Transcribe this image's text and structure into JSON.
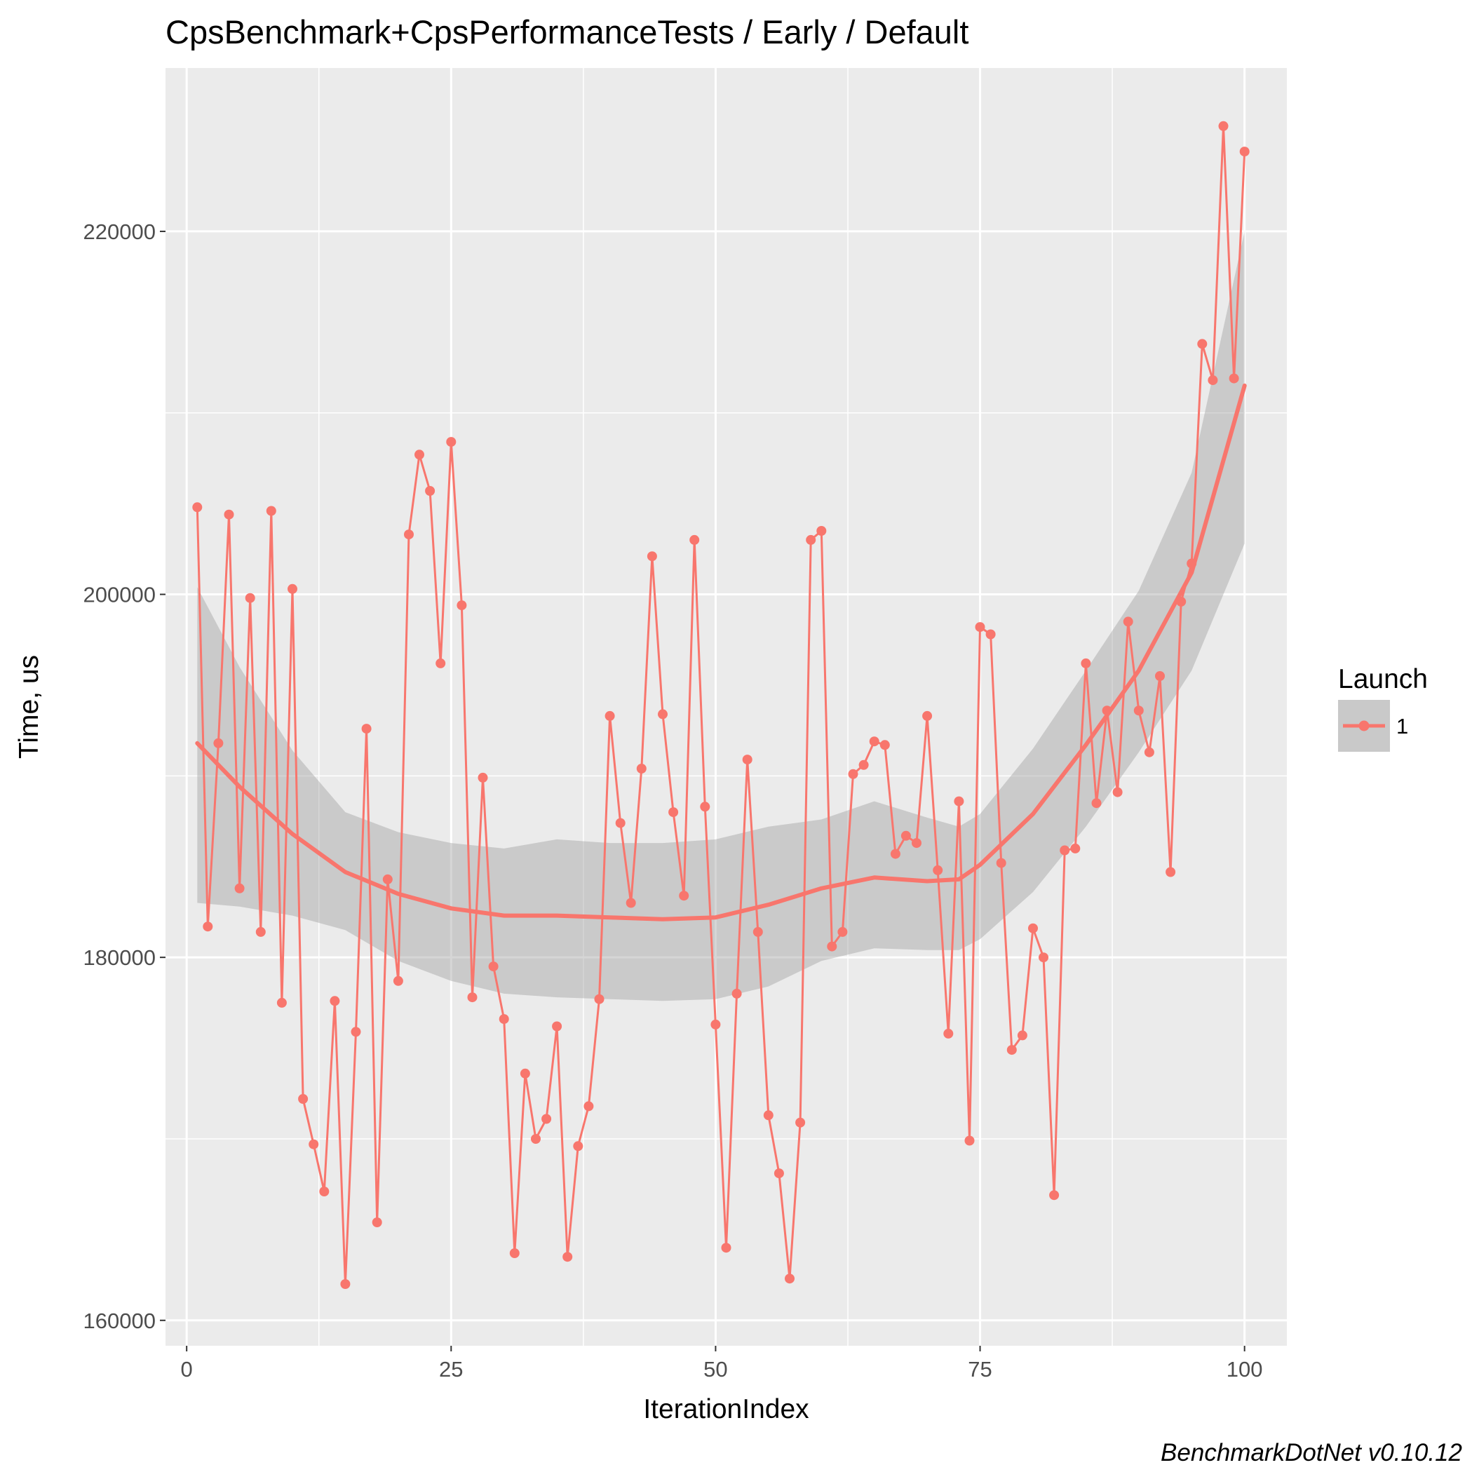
{
  "chart_data": {
    "type": "line",
    "title": "CpsBenchmark+CpsPerformanceTests / Early / Default",
    "xlabel": "IterationIndex",
    "ylabel": "Time, us",
    "caption": "BenchmarkDotNet v0.10.12",
    "xlim": [
      -2,
      104
    ],
    "ylim": [
      158600,
      229000
    ],
    "x_ticks": [
      0,
      25,
      50,
      75,
      100
    ],
    "x_tick_labels": [
      "0",
      "25",
      "50",
      "75",
      "100"
    ],
    "y_ticks": [
      160000,
      180000,
      200000,
      220000
    ],
    "y_tick_labels": [
      "160000",
      "180000",
      "200000",
      "220000"
    ],
    "grid": true,
    "legend": {
      "title": "Launch",
      "position": "right",
      "entries": [
        "1"
      ]
    },
    "colors": {
      "series": "#F8766D",
      "ribbon": "#C9C9C9",
      "panel": "#EBEBEB",
      "grid": "#FFFFFF"
    },
    "series": [
      {
        "name": "1",
        "x": [
          1,
          2,
          3,
          4,
          5,
          6,
          7,
          8,
          9,
          10,
          11,
          12,
          13,
          14,
          15,
          16,
          17,
          18,
          19,
          20,
          21,
          22,
          23,
          24,
          25,
          26,
          27,
          28,
          29,
          30,
          31,
          32,
          33,
          34,
          35,
          36,
          37,
          38,
          39,
          40,
          41,
          42,
          43,
          44,
          45,
          46,
          47,
          48,
          49,
          50,
          51,
          52,
          53,
          54,
          55,
          56,
          57,
          58,
          59,
          60,
          61,
          62,
          63,
          64,
          65,
          66,
          67,
          68,
          69,
          70,
          71,
          72,
          73,
          74,
          75,
          76,
          77,
          78,
          79,
          80,
          81,
          82,
          83,
          84,
          85,
          86,
          87,
          88,
          89,
          90,
          91,
          92,
          93,
          94,
          95,
          96,
          97,
          98,
          99,
          100
        ],
        "values": [
          204800,
          181700,
          191800,
          204400,
          183800,
          199800,
          181400,
          204600,
          177500,
          200300,
          172200,
          169700,
          167100,
          177600,
          162000,
          175900,
          192600,
          165400,
          184300,
          178700,
          203300,
          207700,
          205700,
          196200,
          208400,
          199400,
          177800,
          189900,
          179500,
          176600,
          163700,
          173600,
          170000,
          171100,
          176200,
          163500,
          169600,
          171800,
          177700,
          193300,
          187400,
          183000,
          190400,
          202100,
          193400,
          188000,
          183400,
          203000,
          188300,
          176300,
          164000,
          178000,
          190900,
          181400,
          171300,
          168100,
          162300,
          170900,
          203000,
          203500,
          180600,
          181400,
          190100,
          190600,
          191900,
          191700,
          185700,
          186700,
          186300,
          193300,
          184800,
          175800,
          188600,
          169900,
          198200,
          197800,
          185200,
          174900,
          175700,
          181600,
          180000,
          166900,
          185900,
          186000,
          196200,
          188500,
          193600,
          189100,
          198500,
          193600,
          191300,
          195500,
          184700,
          199600,
          201700,
          213800,
          211800,
          225800,
          211900,
          224400
        ]
      }
    ],
    "smooth": {
      "x": [
        1,
        5,
        10,
        15,
        20,
        25,
        30,
        35,
        40,
        45,
        50,
        55,
        60,
        65,
        70,
        73,
        75,
        80,
        85,
        90,
        95,
        100
      ],
      "fit": [
        191800,
        189400,
        186800,
        184700,
        183500,
        182700,
        182300,
        182300,
        182200,
        182100,
        182200,
        182900,
        183800,
        184400,
        184200,
        184300,
        185100,
        187900,
        191700,
        195800,
        201200,
        211500
      ],
      "lower": [
        183000,
        182800,
        182300,
        181500,
        179800,
        178700,
        178000,
        177800,
        177700,
        177600,
        177700,
        178400,
        179800,
        180500,
        180400,
        180400,
        181000,
        183600,
        187200,
        191300,
        195800,
        202800
      ],
      "upper": [
        200400,
        196000,
        191400,
        188000,
        186900,
        186300,
        186000,
        186500,
        186300,
        186300,
        186500,
        187200,
        187600,
        188600,
        187700,
        187200,
        187900,
        191500,
        195800,
        200200,
        206700,
        220000
      ]
    }
  }
}
